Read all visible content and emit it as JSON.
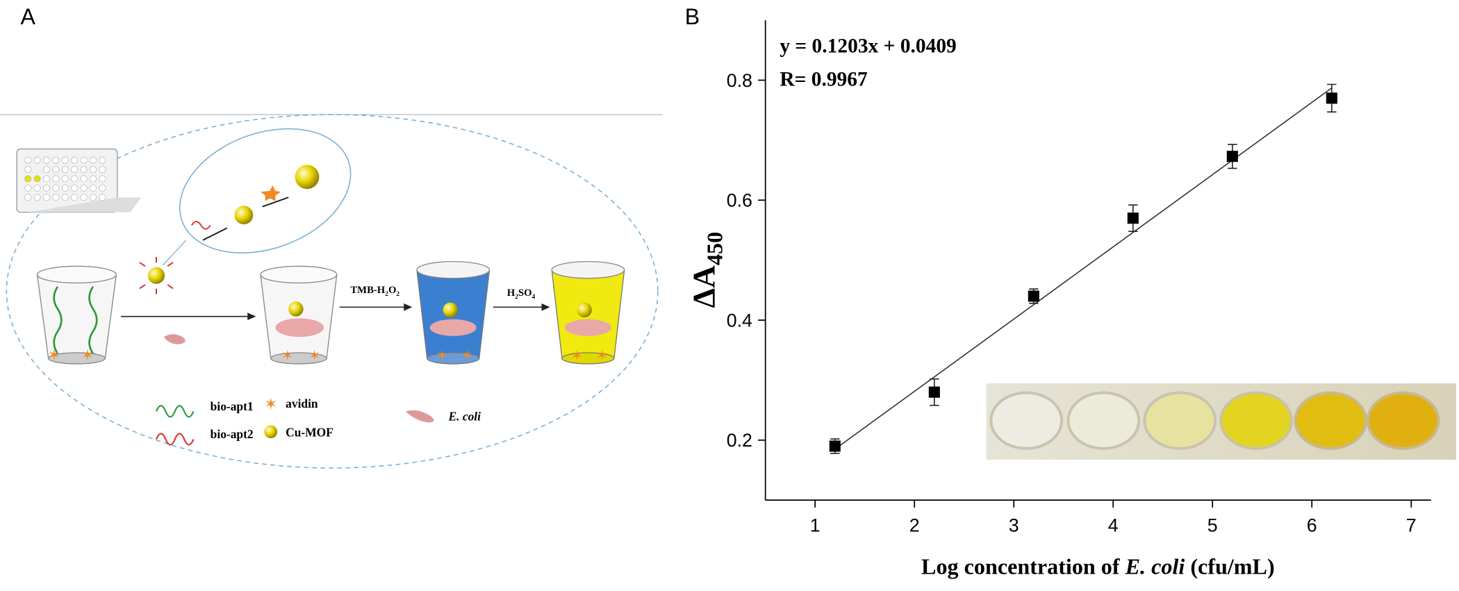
{
  "panel_labels": [
    "A",
    "B"
  ],
  "diagram": {
    "step_labels": {
      "tmb": [
        "TMB-H",
        "2",
        "O",
        "2"
      ],
      "acid": [
        "H",
        "2",
        "SO",
        "4"
      ]
    },
    "legend": {
      "bio_apt1": "bio-apt1",
      "bio_apt2": "bio-apt2",
      "avidin": "avidin",
      "cu_mof": "Cu-MOF",
      "e_coli": "E. coli"
    }
  },
  "chart_data": {
    "type": "scatter",
    "annotations": [
      "y = 0.1203x + 0.0409",
      "R= 0.9967"
    ],
    "y_label": [
      "ΔA",
      "450"
    ],
    "x_label": [
      "Log concentration of ",
      "E. coli",
      " (cfu/mL)"
    ],
    "x": [
      1.2,
      2.2,
      3.2,
      4.2,
      5.2,
      6.2
    ],
    "values": [
      0.19,
      0.28,
      0.44,
      0.57,
      0.673,
      0.77
    ],
    "errors": [
      0.012,
      0.022,
      0.012,
      0.022,
      0.02,
      0.023
    ],
    "color": "#000000",
    "fit": {
      "x": [
        1.2,
        6.2
      ],
      "values": [
        0.185,
        0.787
      ]
    },
    "xlim": [
      0.5,
      7.2
    ],
    "xticks": [
      1,
      2,
      3,
      4,
      5,
      6,
      7
    ],
    "ylim": [
      0.1,
      0.9
    ],
    "yticks": [
      0.2,
      0.4,
      0.6,
      0.8
    ]
  }
}
